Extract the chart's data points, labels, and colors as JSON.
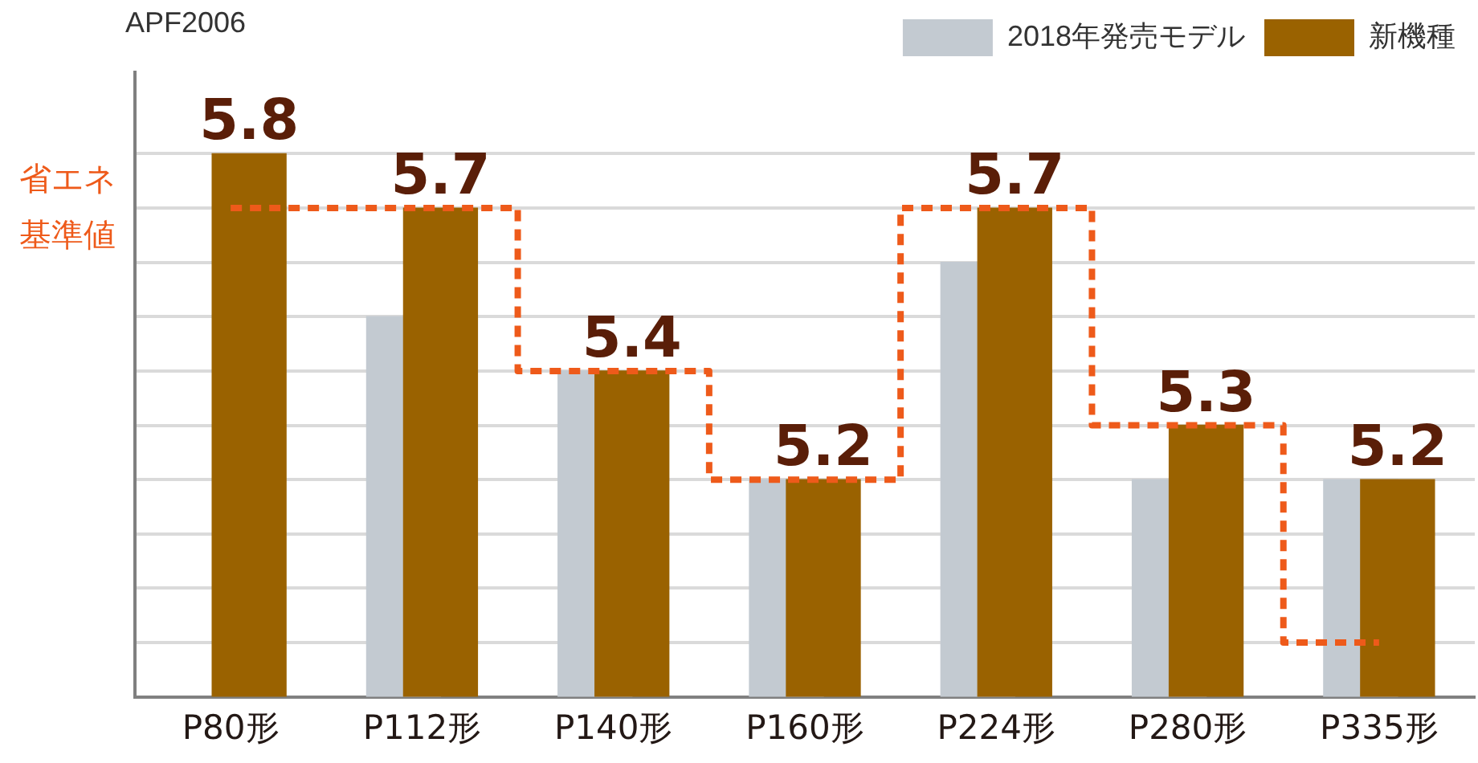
{
  "chart_data": {
    "type": "bar",
    "ylabel": "APF2006",
    "categories": [
      "P80形",
      "P112形",
      "P140形",
      "P160形",
      "P224形",
      "P280形",
      "P335形"
    ],
    "series": [
      {
        "name": "2018年発売モデル",
        "color": "#c3cad1",
        "values": [
          null,
          5.5,
          5.4,
          5.2,
          5.6,
          5.2,
          5.2
        ]
      },
      {
        "name": "新機種",
        "color": "#9a6200",
        "values": [
          5.8,
          5.7,
          5.4,
          5.2,
          5.7,
          5.3,
          5.2
        ],
        "value_labels": [
          "5.8",
          "5.7",
          "5.4",
          "5.2",
          "5.7",
          "5.3",
          "5.2"
        ]
      },
      {
        "type": "step",
        "name": "省エネ基準値",
        "color": "#ee5a1a",
        "values": [
          5.7,
          5.7,
          5.4,
          5.2,
          5.7,
          5.3,
          4.9
        ],
        "line_style": "dashed",
        "marker": "none"
      }
    ],
    "ylim": [
      4.8,
      5.95
    ],
    "yticks": [
      {
        "value": 4.8,
        "label": null
      },
      {
        "value": 4.9,
        "label": null
      },
      {
        "value": 5.0,
        "label": null
      },
      {
        "value": 5.1,
        "label": null
      },
      {
        "value": 5.2,
        "label": null
      },
      {
        "value": 5.3,
        "label": null
      },
      {
        "value": 5.4,
        "label": null
      },
      {
        "value": 5.5,
        "label": null
      },
      {
        "value": 5.6,
        "label": null
      },
      {
        "value": 5.7,
        "label": null
      },
      {
        "value": 5.8,
        "label": null
      }
    ],
    "grid": "y",
    "legend": "top right",
    "tick_labels": "x"
  }
}
